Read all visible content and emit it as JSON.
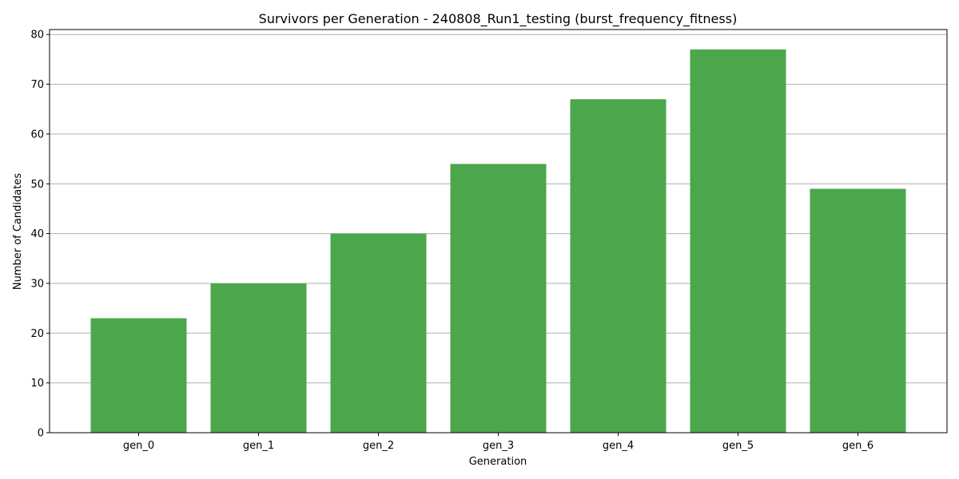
{
  "chart_data": {
    "type": "bar",
    "title": "Survivors per Generation - 240808_Run1_testing (burst_frequency_fitness)",
    "xlabel": "Generation",
    "ylabel": "Number of Candidates",
    "categories": [
      "gen_0",
      "gen_1",
      "gen_2",
      "gen_3",
      "gen_4",
      "gen_5",
      "gen_6"
    ],
    "values": [
      23,
      30,
      40,
      54,
      67,
      77,
      49
    ],
    "ylim": [
      0,
      81
    ],
    "yticks": [
      0,
      10,
      20,
      30,
      40,
      50,
      60,
      70,
      80
    ],
    "grid": "y-major",
    "bar_color": "#4ca64c",
    "grid_color": "#b0b0b0"
  }
}
